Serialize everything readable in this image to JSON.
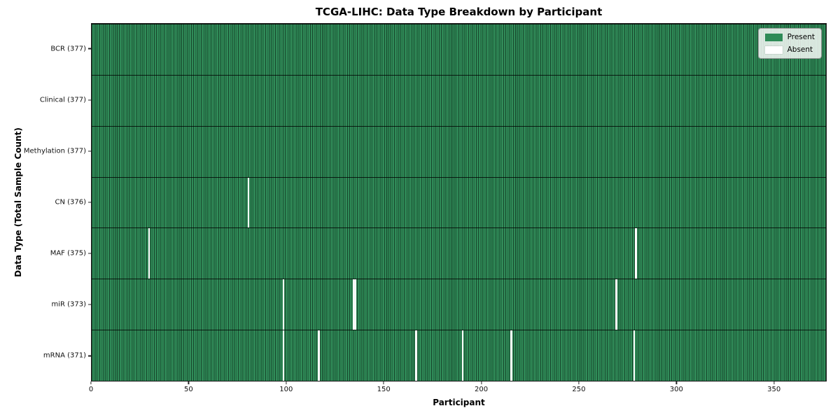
{
  "chart": {
    "title": "TCGA-LIHC: Data Type Breakdown by Participant",
    "xlabel": "Participant",
    "ylabel": "Data Type (Total Sample Count)"
  },
  "legend": {
    "present_label": "Present",
    "absent_label": "Absent"
  },
  "colors": {
    "present": "#2e8b57",
    "absent": "#ffffff",
    "cell_edge": "rgba(0,0,0,0.5)"
  },
  "chart_data": {
    "type": "heatmap",
    "title": "TCGA-LIHC: Data Type Breakdown by Participant",
    "xlabel": "Participant",
    "ylabel": "Data Type (Total Sample Count)",
    "n_participants": 377,
    "xlim": [
      0,
      377
    ],
    "x_ticks": [
      0,
      50,
      100,
      150,
      200,
      250,
      300,
      350
    ],
    "grid": false,
    "legend_position": "upper-right",
    "legend_entries": [
      {
        "label": "Present",
        "color": "#2e8b57"
      },
      {
        "label": "Absent",
        "color": "#ffffff"
      }
    ],
    "rows": [
      {
        "name": "BCR",
        "label": "BCR (377)",
        "total_present": 377,
        "absent_participants": []
      },
      {
        "name": "Clinical",
        "label": "Clinical (377)",
        "total_present": 377,
        "absent_participants": []
      },
      {
        "name": "Methylation",
        "label": "Methylation (377)",
        "total_present": 377,
        "absent_participants": []
      },
      {
        "name": "CN",
        "label": "CN (376)",
        "total_present": 376,
        "absent_participants": [
          80
        ]
      },
      {
        "name": "MAF",
        "label": "MAF (375)",
        "total_present": 375,
        "absent_participants": [
          29,
          279
        ]
      },
      {
        "name": "miR",
        "label": "miR (373)",
        "total_present": 373,
        "absent_participants": [
          98,
          134,
          135,
          269
        ]
      },
      {
        "name": "mRNA",
        "label": "mRNA (371)",
        "total_present": 371,
        "absent_participants": [
          98,
          116,
          166,
          190,
          215,
          278
        ]
      }
    ]
  }
}
